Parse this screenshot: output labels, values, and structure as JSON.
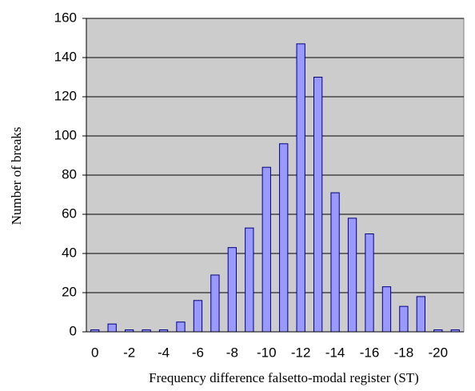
{
  "chart_data": {
    "type": "bar",
    "y_label": "Number of breaks",
    "x_label": "Frequency difference falsetto-modal register (ST)",
    "categories": [
      "0",
      null,
      "-2",
      null,
      "-4",
      null,
      "-6",
      null,
      "-8",
      null,
      "-10",
      null,
      "-12",
      null,
      "-14",
      null,
      "-16",
      null,
      "-18",
      null,
      "-20",
      null
    ],
    "values": [
      1,
      4,
      1,
      1,
      1,
      5,
      16,
      29,
      43,
      53,
      84,
      96,
      147,
      130,
      71,
      58,
      50,
      23,
      13,
      18,
      1,
      1
    ],
    "color": "#9999ff",
    "ylim": [
      0,
      160
    ],
    "yticks": [
      0,
      20,
      40,
      60,
      80,
      100,
      120,
      140,
      160
    ],
    "grid": true
  }
}
